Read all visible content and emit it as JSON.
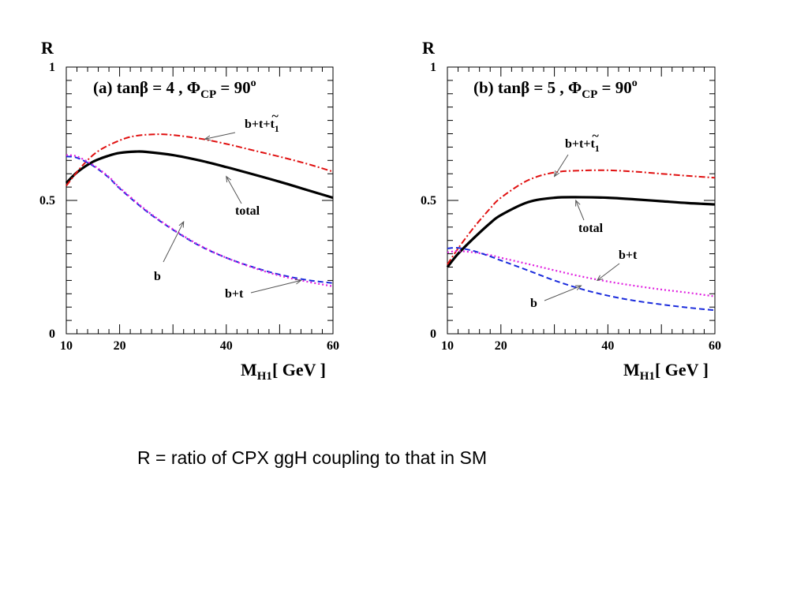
{
  "caption": "R = ratio of CPX ggH coupling to that in SM",
  "colors": {
    "total": "#000000",
    "b": "#1a2bdc",
    "bt": "#e020e0",
    "btt": "#e01010"
  },
  "chart_data": [
    {
      "type": "line",
      "title": "(a) tanβ = 4 , Φ",
      "title_sub": "CP",
      "title_end": " = 90",
      "title_sup": "o",
      "xlabel": "M",
      "xlabel_sub": "H1",
      "xlabel_end": "[ GeV ]",
      "ylabel": "R",
      "xlim": [
        10,
        60
      ],
      "ylim": [
        0,
        1
      ],
      "xticks": [
        10,
        20,
        40,
        60
      ],
      "yticks": [
        0,
        0.5,
        1
      ],
      "ytick_labels": [
        "0",
        "0.5",
        "1"
      ],
      "grid": false,
      "series": [
        {
          "name": "total",
          "style": "solid",
          "color": "#000000",
          "x": [
            10,
            12,
            15,
            18,
            20,
            23,
            25,
            30,
            35,
            40,
            45,
            50,
            55,
            60
          ],
          "y": [
            0.565,
            0.605,
            0.645,
            0.668,
            0.678,
            0.683,
            0.682,
            0.67,
            0.65,
            0.625,
            0.598,
            0.57,
            0.54,
            0.51
          ]
        },
        {
          "name": "b+t+t1",
          "style": "dashdot",
          "color": "#e01010",
          "x": [
            10,
            13,
            16,
            20,
            23,
            27,
            30,
            35,
            40,
            45,
            50,
            55,
            60
          ],
          "y": [
            0.555,
            0.63,
            0.685,
            0.725,
            0.742,
            0.748,
            0.745,
            0.732,
            0.712,
            0.688,
            0.664,
            0.638,
            0.608
          ]
        },
        {
          "name": "b",
          "style": "dashed",
          "color": "#1a2bdc",
          "x": [
            10,
            12,
            15,
            18,
            20,
            25,
            30,
            35,
            40,
            45,
            50,
            55,
            60
          ],
          "y": [
            0.665,
            0.66,
            0.63,
            0.585,
            0.545,
            0.46,
            0.39,
            0.33,
            0.285,
            0.25,
            0.222,
            0.202,
            0.19
          ]
        },
        {
          "name": "b+t",
          "style": "dotted",
          "color": "#e020e0",
          "x": [
            10,
            12,
            15,
            18,
            20,
            25,
            30,
            35,
            40,
            45,
            50,
            55,
            60
          ],
          "y": [
            0.67,
            0.665,
            0.633,
            0.588,
            0.548,
            0.463,
            0.392,
            0.332,
            0.285,
            0.248,
            0.218,
            0.196,
            0.178
          ]
        }
      ],
      "annotations": [
        {
          "text": "b+t+t",
          "sub": "1",
          "tilde": true,
          "target": [
            36,
            0.73
          ]
        },
        {
          "text": "total",
          "target": [
            40,
            0.59
          ]
        },
        {
          "text": "b",
          "target": [
            32,
            0.42
          ]
        },
        {
          "text": "b+t",
          "target": [
            54,
            0.2
          ]
        }
      ]
    },
    {
      "type": "line",
      "title": "(b) tanβ = 5 , Φ",
      "title_sub": "CP",
      "title_end": " = 90",
      "title_sup": "o",
      "xlabel": "M",
      "xlabel_sub": "H1",
      "xlabel_end": "[ GeV ]",
      "ylabel": "R",
      "xlim": [
        10,
        60
      ],
      "ylim": [
        0,
        1
      ],
      "xticks": [
        10,
        20,
        40,
        60
      ],
      "yticks": [
        0,
        0.5,
        1
      ],
      "ytick_labels": [
        "0",
        "0.5",
        "1"
      ],
      "grid": false,
      "series": [
        {
          "name": "total",
          "style": "solid",
          "color": "#000000",
          "x": [
            10,
            12,
            15,
            18,
            20,
            25,
            30,
            35,
            40,
            45,
            50,
            55,
            60
          ],
          "y": [
            0.25,
            0.3,
            0.36,
            0.415,
            0.445,
            0.493,
            0.51,
            0.512,
            0.51,
            0.504,
            0.497,
            0.49,
            0.485
          ]
        },
        {
          "name": "b+t+t1",
          "style": "dashdot",
          "color": "#e01010",
          "x": [
            10,
            12,
            15,
            18,
            20,
            25,
            30,
            35,
            40,
            45,
            50,
            55,
            60
          ],
          "y": [
            0.26,
            0.32,
            0.4,
            0.47,
            0.51,
            0.575,
            0.605,
            0.612,
            0.613,
            0.608,
            0.6,
            0.592,
            0.585
          ]
        },
        {
          "name": "b+t",
          "style": "dotted",
          "color": "#e020e0",
          "x": [
            10,
            12,
            15,
            18,
            20,
            25,
            30,
            35,
            40,
            45,
            50,
            55,
            60
          ],
          "y": [
            0.305,
            0.31,
            0.305,
            0.295,
            0.285,
            0.262,
            0.238,
            0.215,
            0.196,
            0.18,
            0.166,
            0.154,
            0.14
          ]
        },
        {
          "name": "b",
          "style": "dashed",
          "color": "#1a2bdc",
          "x": [
            10,
            12,
            15,
            18,
            20,
            25,
            30,
            35,
            40,
            45,
            50,
            55,
            60
          ],
          "y": [
            0.32,
            0.322,
            0.31,
            0.29,
            0.275,
            0.238,
            0.2,
            0.168,
            0.143,
            0.124,
            0.11,
            0.098,
            0.088
          ]
        }
      ],
      "annotations": [
        {
          "text": "b+t+t",
          "sub": "1",
          "tilde": true,
          "target": [
            30,
            0.59
          ]
        },
        {
          "text": "total",
          "target": [
            34,
            0.5
          ]
        },
        {
          "text": "b+t",
          "target": [
            38,
            0.2
          ]
        },
        {
          "text": "b",
          "target": [
            35,
            0.18
          ]
        }
      ]
    }
  ]
}
